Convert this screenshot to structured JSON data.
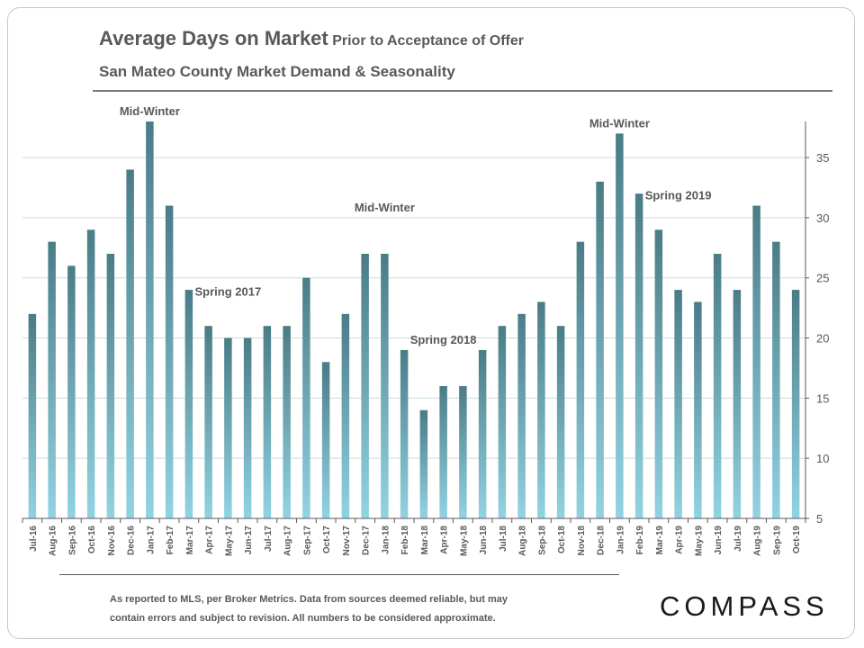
{
  "title": {
    "main": "Average Days on Market",
    "sub": "Prior to Acceptance of Offer"
  },
  "subtitle": "San Mateo County Market Demand & Seasonality",
  "footnote": {
    "line1": "As reported to MLS, per Broker Metrics. Data from sources deemed reliable, but may",
    "line2": "contain errors and subject to revision. All numbers to be considered approximate."
  },
  "logo": "COMPASS",
  "colors": {
    "bar_top": "#4a7c86",
    "bar_bottom": "#92d3e2",
    "grid": "#c9dede",
    "text": "#595959"
  },
  "chart_data": {
    "type": "bar",
    "categories": [
      "Jul-16",
      "Aug-16",
      "Sep-16",
      "Oct-16",
      "Nov-16",
      "Dec-16",
      "Jan-17",
      "Feb-17",
      "Mar-17",
      "Apr-17",
      "May-17",
      "Jun-17",
      "Jul-17",
      "Aug-17",
      "Sep-17",
      "Oct-17",
      "Nov-17",
      "Dec-17",
      "Jan-18",
      "Feb-18",
      "Mar-18",
      "Apr-18",
      "May-18",
      "Jun-18",
      "Jul-18",
      "Aug-18",
      "Sep-18",
      "Oct-18",
      "Nov-18",
      "Dec-18",
      "Jan-19",
      "Feb-19",
      "Mar-19",
      "Apr-19",
      "May-19",
      "Jun-19",
      "Jul-19",
      "Aug-19",
      "Sep-19",
      "Oct-19"
    ],
    "values": [
      22,
      28,
      26,
      29,
      27,
      34,
      38,
      31,
      24,
      21,
      20,
      20,
      21,
      21,
      25,
      18,
      22,
      27,
      27,
      19,
      14,
      16,
      16,
      19,
      21,
      22,
      23,
      21,
      28,
      33,
      37,
      32,
      29,
      24,
      23,
      27,
      24,
      31,
      28,
      24
    ],
    "ylim": [
      5,
      38
    ],
    "yticks": [
      5,
      10,
      15,
      20,
      25,
      30,
      35
    ],
    "y_axis_side": "right",
    "grid": true,
    "annotations": [
      {
        "text": "Mid-Winter",
        "category": "Jan-17",
        "value": 38
      },
      {
        "text": "Spring 2017",
        "category": "May-17",
        "value": 23
      },
      {
        "text": "Mid-Winter",
        "category": "Jan-18",
        "value": 30
      },
      {
        "text": "Spring 2018",
        "category": "Apr-18",
        "value": 19
      },
      {
        "text": "Mid-Winter",
        "category": "Jan-19",
        "value": 37
      },
      {
        "text": "Spring 2019",
        "category": "Apr-19",
        "value": 31
      }
    ]
  }
}
